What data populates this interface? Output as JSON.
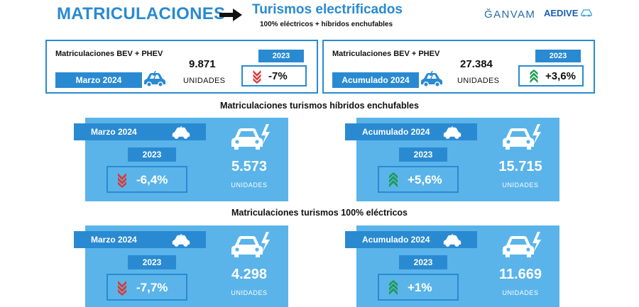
{
  "header": {
    "title": "MATRICULACIONES",
    "subtitle": "Turismos electrificados",
    "subtitle_note": "100% eléctricos + híbridos enchufables",
    "logo_ganvam": "ĞANVAM",
    "logo_aedive": "AEDIVE"
  },
  "summary": [
    {
      "label": "Matriculaciones BEV + PHEV",
      "period": "Marzo 2024",
      "value": "9.871",
      "unit": "UNIDADES",
      "year": "2023",
      "change": "-7%",
      "trend": "down"
    },
    {
      "label": "Matriculaciones BEV + PHEV",
      "period": "Acumulado 2024",
      "value": "27.384",
      "unit": "UNIDADES",
      "year": "2023",
      "change": "+3,6%",
      "trend": "up"
    }
  ],
  "sections": [
    {
      "title": "Matriculaciones turismos híbridos enchufables",
      "tiles": [
        {
          "period": "Marzo 2024",
          "year": "2023",
          "change": "-6,4%",
          "trend": "down",
          "value": "5.573",
          "unit": "UNIDADES"
        },
        {
          "period": "Acumulado 2024",
          "year": "2023",
          "change": "+5,6%",
          "trend": "up",
          "value": "15.715",
          "unit": "UNIDADES"
        }
      ]
    },
    {
      "title": "Matriculaciones turismos 100% eléctricos",
      "tiles": [
        {
          "period": "Marzo 2024",
          "year": "2023",
          "change": "-7,7%",
          "trend": "down",
          "value": "4.298",
          "unit": "UNIDADES"
        },
        {
          "period": "Acumulado 2024",
          "year": "2023",
          "change": "+1%",
          "trend": "up",
          "value": "11.669",
          "unit": "UNIDADES"
        }
      ]
    }
  ],
  "colors": {
    "accent": "#2a8ad1",
    "tile": "#5ab4ea",
    "down": "#d83a3a",
    "up": "#1f9a52"
  }
}
